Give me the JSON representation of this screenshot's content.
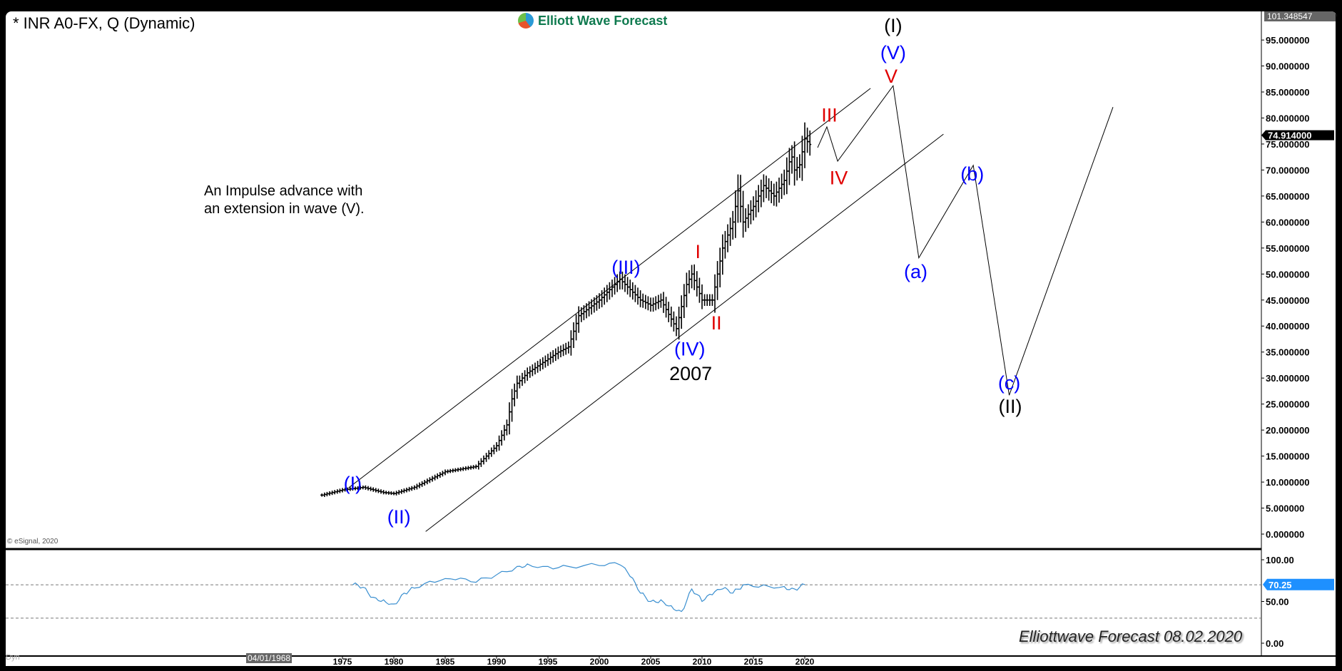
{
  "header": {
    "title": "* INR A0-FX, Q (Dynamic)",
    "logo_text": "Elliott Wave Forecast"
  },
  "annotation": {
    "line1": "An Impulse advance with",
    "line2": "an extension in wave (V)."
  },
  "footer": {
    "copyright": "© eSignal, 2020",
    "signature": "Elliottwave Forecast  08.02.2020",
    "dyn_label": "Dyn",
    "cursor_date": "04/01/1968"
  },
  "colors": {
    "price": "#000000",
    "wave_blue": "#0000ff",
    "wave_red": "#e00000",
    "wave_black": "#000000",
    "indicator": "#3a8fd0",
    "indicator_tag": "#1e90ff"
  },
  "chart_data": [
    {
      "type": "line",
      "name": "price",
      "xlabel": "",
      "ylabel": "",
      "x_ticks": [
        "1975",
        "1980",
        "1985",
        "1990",
        "1995",
        "2000",
        "2005",
        "2010",
        "2015",
        "2020"
      ],
      "y_ticks": [
        "0.000000",
        "5.000000",
        "10.000000",
        "15.000000",
        "20.000000",
        "25.000000",
        "30.000000",
        "35.000000",
        "40.000000",
        "45.000000",
        "50.000000",
        "55.000000",
        "60.000000",
        "65.000000",
        "70.000000",
        "75.000000",
        "80.000000",
        "85.000000",
        "90.000000",
        "95.000000"
      ],
      "ylim": [
        0,
        101.348547
      ],
      "top_label": "101.348547",
      "last_price_label": "74.914000",
      "points": [
        [
          1973,
          7.5
        ],
        [
          1975,
          8.5
        ],
        [
          1977,
          9
        ],
        [
          1979,
          8
        ],
        [
          1980,
          7.8
        ],
        [
          1982,
          9
        ],
        [
          1985,
          12
        ],
        [
          1988,
          13
        ],
        [
          1990,
          17
        ],
        [
          1991,
          21
        ],
        [
          1991.5,
          26
        ],
        [
          1992,
          29
        ],
        [
          1993,
          31
        ],
        [
          1996,
          35
        ],
        [
          1997,
          36
        ],
        [
          1998,
          42
        ],
        [
          2000,
          45
        ],
        [
          2002,
          49
        ],
        [
          2004,
          45
        ],
        [
          2005,
          44
        ],
        [
          2006,
          45
        ],
        [
          2007.5,
          39.5
        ],
        [
          2008.5,
          48
        ],
        [
          2009,
          50
        ],
        [
          2010,
          45
        ],
        [
          2011,
          45
        ],
        [
          2012,
          55
        ],
        [
          2013,
          60
        ],
        [
          2013.5,
          66
        ],
        [
          2014,
          60
        ],
        [
          2015,
          63
        ],
        [
          2016,
          67
        ],
        [
          2017,
          65
        ],
        [
          2018,
          68
        ],
        [
          2018.7,
          73
        ],
        [
          2019,
          70
        ],
        [
          2019.5,
          71
        ],
        [
          2020,
          76
        ],
        [
          2020.5,
          74.914
        ]
      ],
      "channel_upper": [
        [
          1975.6,
          8.9
        ],
        [
          2026.4,
          85.7
        ]
      ],
      "channel_lower": [
        [
          1983.1,
          0.5
        ],
        [
          2033.5,
          76.9
        ]
      ],
      "projection": [
        [
          2021.25,
          74.3
        ],
        [
          2022.15,
          78.3
        ],
        [
          2023.2,
          71.7
        ],
        [
          2028.6,
          86.2
        ],
        [
          2031.1,
          53.1
        ],
        [
          2036.4,
          70.9
        ],
        [
          2039.9,
          26.7
        ],
        [
          2050,
          82.1
        ]
      ],
      "wave_labels": [
        {
          "text": "(I)",
          "x": 1976,
          "y": 9.5,
          "color": "blue"
        },
        {
          "text": "(II)",
          "x": 1980.5,
          "y": 3,
          "color": "blue"
        },
        {
          "text": "(III)",
          "x": 2002.6,
          "y": 51,
          "color": "blue"
        },
        {
          "text": "(IV)",
          "x": 2008.8,
          "y": 35.3,
          "color": "blue"
        },
        {
          "text": "2007",
          "x": 2008.9,
          "y": 30.6,
          "color": "black"
        },
        {
          "text": "I",
          "x": 2009.6,
          "y": 54,
          "color": "red"
        },
        {
          "text": "II",
          "x": 2011.4,
          "y": 40.3,
          "color": "red"
        },
        {
          "text": "III",
          "x": 2022.4,
          "y": 80.3,
          "color": "red"
        },
        {
          "text": "IV",
          "x": 2023.3,
          "y": 68.2,
          "color": "red"
        },
        {
          "text": "V",
          "x": 2028.4,
          "y": 88.7,
          "color": "red"
        },
        {
          "text": "(V)",
          "x": 2028.6,
          "y": 92.3,
          "color": "blue"
        },
        {
          "text": "(I)",
          "x": 2028.6,
          "y": 97.5,
          "color": "black"
        },
        {
          "text": "(a)",
          "x": 2030.8,
          "y": 50.2,
          "color": "blue"
        },
        {
          "text": "(b)",
          "x": 2036.3,
          "y": 69,
          "color": "blue"
        },
        {
          "text": "(c)",
          "x": 2039.9,
          "y": 28.8,
          "color": "blue"
        },
        {
          "text": "(II)",
          "x": 2040,
          "y": 24.5,
          "color": "black"
        }
      ]
    },
    {
      "type": "line",
      "name": "indicator",
      "y_ticks": [
        "100.00",
        "50.00",
        "0.00"
      ],
      "ylim": [
        0,
        100
      ],
      "reference_lines": [
        70,
        30
      ],
      "last_value_label": "70.25",
      "points": [
        [
          1976,
          70
        ],
        [
          1977,
          67
        ],
        [
          1978,
          55
        ],
        [
          1979,
          52
        ],
        [
          1980,
          47
        ],
        [
          1981,
          60
        ],
        [
          1982,
          66
        ],
        [
          1984,
          73
        ],
        [
          1986,
          76
        ],
        [
          1988,
          73
        ],
        [
          1990,
          82
        ],
        [
          1992,
          92
        ],
        [
          1993,
          95
        ],
        [
          1995,
          92
        ],
        [
          1997,
          92
        ],
        [
          2000,
          93
        ],
        [
          2002,
          94
        ],
        [
          2003,
          80
        ],
        [
          2004,
          60
        ],
        [
          2005,
          50
        ],
        [
          2006,
          52
        ],
        [
          2007,
          45
        ],
        [
          2008,
          38
        ],
        [
          2009,
          65
        ],
        [
          2010,
          50
        ],
        [
          2011,
          58
        ],
        [
          2012,
          65
        ],
        [
          2013,
          60
        ],
        [
          2014,
          70
        ],
        [
          2016,
          70
        ],
        [
          2018,
          68
        ],
        [
          2019,
          65
        ],
        [
          2020,
          70.25
        ]
      ]
    }
  ]
}
